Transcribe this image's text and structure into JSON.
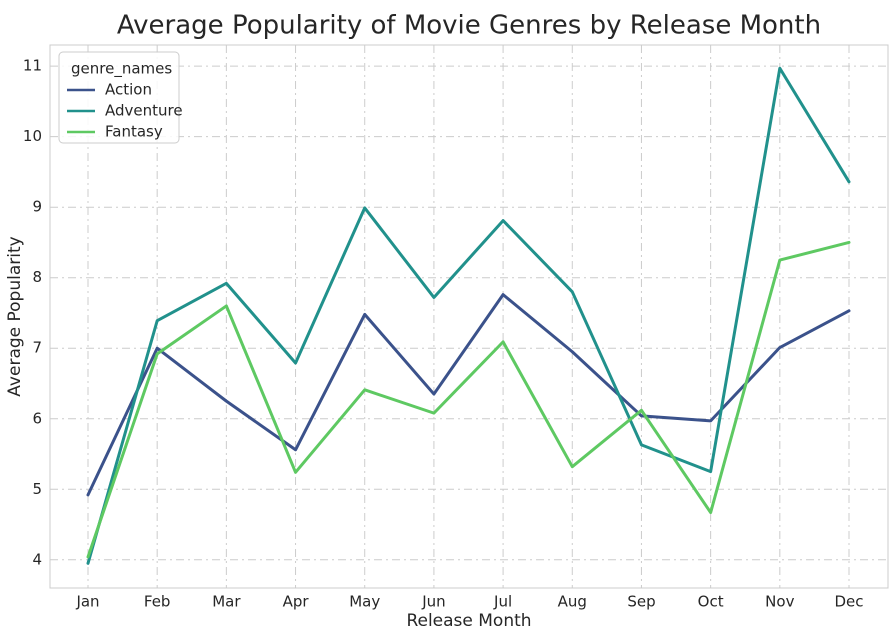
{
  "chart_data": {
    "type": "line",
    "title": "Average Popularity of Movie Genres by Release Month",
    "xlabel": "Release Month",
    "ylabel": "Average Popularity",
    "categories": [
      "Jan",
      "Feb",
      "Mar",
      "Apr",
      "May",
      "Jun",
      "Jul",
      "Aug",
      "Sep",
      "Oct",
      "Nov",
      "Dec"
    ],
    "yticks": [
      4,
      5,
      6,
      7,
      8,
      9,
      10,
      11
    ],
    "ylim": [
      3.6,
      11.3
    ],
    "grid": true,
    "legend": {
      "title": "genre_names",
      "placement": "top-left"
    },
    "series": [
      {
        "name": "Action",
        "color": "#3b528b",
        "values": [
          4.92,
          7.0,
          6.25,
          5.56,
          7.48,
          6.35,
          7.76,
          6.95,
          6.04,
          5.97,
          7.01,
          7.53
        ]
      },
      {
        "name": "Adventure",
        "color": "#21918c",
        "values": [
          3.95,
          7.39,
          7.92,
          6.79,
          8.99,
          7.72,
          8.81,
          7.8,
          5.63,
          5.25,
          10.97,
          9.36
        ]
      },
      {
        "name": "Fantasy",
        "color": "#5ec962",
        "values": [
          4.04,
          6.92,
          7.6,
          5.24,
          6.41,
          6.08,
          7.09,
          5.32,
          6.12,
          4.67,
          8.25,
          8.5
        ]
      }
    ]
  }
}
